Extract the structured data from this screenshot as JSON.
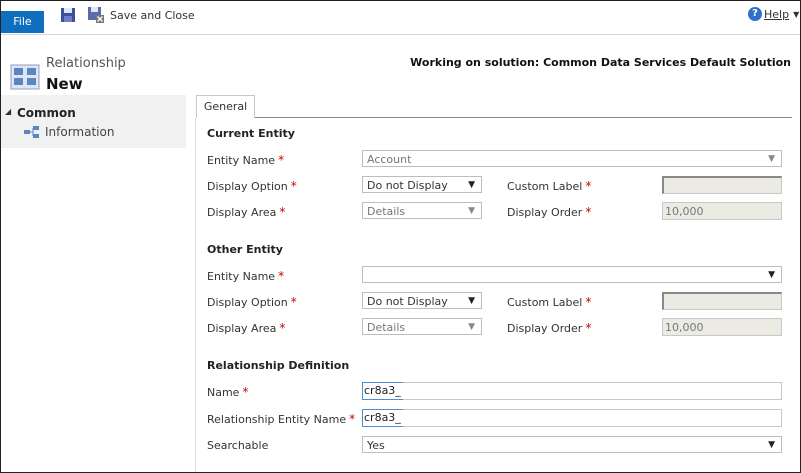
{
  "toolbar": {
    "file_label": "File",
    "save_close_label": "Save and Close",
    "help_label": "Help"
  },
  "header": {
    "entity_type": "Relationship",
    "title": "New",
    "solution_notice": "Working on solution: Common Data Services Default Solution"
  },
  "nav": {
    "section": "Common",
    "items": [
      {
        "label": "Information"
      }
    ]
  },
  "tabs": [
    {
      "label": "General"
    }
  ],
  "current_entity": {
    "heading": "Current Entity",
    "entity_name_label": "Entity Name",
    "entity_name_value": "Account",
    "display_option_label": "Display Option",
    "display_option_value": "Do not Display",
    "custom_label_label": "Custom Label",
    "custom_label_value": "",
    "display_area_label": "Display Area",
    "display_area_value": "Details",
    "display_order_label": "Display Order",
    "display_order_value": "10,000"
  },
  "other_entity": {
    "heading": "Other Entity",
    "entity_name_label": "Entity Name",
    "entity_name_value": "",
    "display_option_label": "Display Option",
    "display_option_value": "Do not Display",
    "custom_label_label": "Custom Label",
    "custom_label_value": "",
    "display_area_label": "Display Area",
    "display_area_value": "Details",
    "display_order_label": "Display Order",
    "display_order_value": "10,000"
  },
  "relationship_definition": {
    "heading": "Relationship Definition",
    "name_label": "Name",
    "name_prefix": "cr8a3_",
    "entity_name_label": "Relationship Entity Name",
    "entity_name_prefix": "cr8a3_",
    "searchable_label": "Searchable",
    "searchable_value": "Yes"
  },
  "required_marker": "*",
  "colors": {
    "file_button": "#106ebe",
    "required": "#cc0000",
    "nav_bg": "#f1f1f1"
  }
}
